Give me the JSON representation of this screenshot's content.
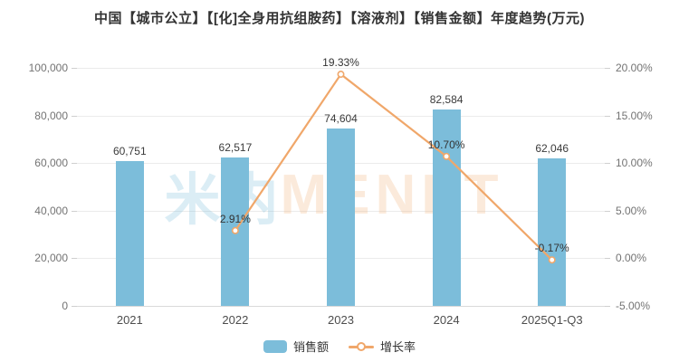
{
  "title": "中国【城市公立】【[化]全身用抗组胺药】【溶液剂】【销售金额】年度趋势(万元)",
  "watermark": {
    "logo": "米内",
    "text": "MENET"
  },
  "colors": {
    "bar": "#7cbdda",
    "line": "#f0a76a",
    "grid": "#ebebeb",
    "axis_line": "#d9d9d9",
    "tick_text": "#737373",
    "label_text": "#3b3b3b",
    "title_text": "#333333"
  },
  "legend": [
    {
      "label": "销售额",
      "type": "bar"
    },
    {
      "label": "增长率",
      "type": "line"
    }
  ],
  "chart_data": {
    "type": "bar+line",
    "title": "中国【城市公立】【[化]全身用抗组胺药】【溶液剂】【销售金额】年度趋势(万元)",
    "categories": [
      "2021",
      "2022",
      "2023",
      "2024",
      "2025Q1-Q3"
    ],
    "series": [
      {
        "name": "销售额",
        "type": "bar",
        "axis": "left",
        "values": [
          60751,
          62517,
          74604,
          82584,
          62046
        ],
        "labels": [
          "60,751",
          "62,517",
          "74,604",
          "82,584",
          "62,046"
        ]
      },
      {
        "name": "增长率",
        "type": "line",
        "axis": "right",
        "values": [
          null,
          2.91,
          19.33,
          10.7,
          -0.17
        ],
        "labels": [
          null,
          "2.91%",
          "19.33%",
          "10.70%",
          "-0.17%"
        ]
      }
    ],
    "left_axis": {
      "min": 0,
      "max": 100000,
      "ticks_top_to_bottom": [
        "100,000",
        "80,000",
        "60,000",
        "40,000",
        "20,000",
        "0"
      ]
    },
    "right_axis": {
      "min": -5,
      "max": 20,
      "ticks_top_to_bottom": [
        "20.00%",
        "15.00%",
        "10.00%",
        "5.00%",
        "0.00%",
        "-5.00%"
      ]
    },
    "grid": true,
    "legend_position": "bottom"
  }
}
